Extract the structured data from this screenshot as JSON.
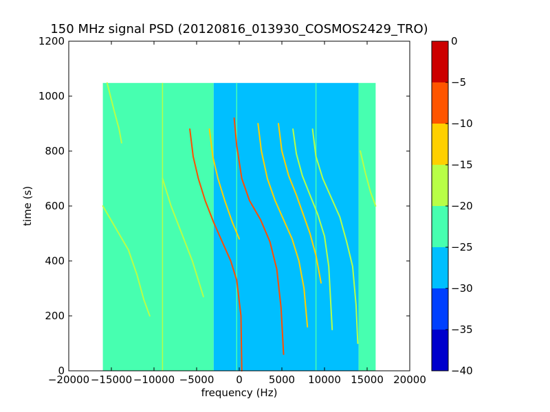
{
  "chart_data": {
    "type": "heatmap",
    "title": "150 MHz signal PSD (20120816_013930_COSMOS2429_TRO)",
    "xlabel": "frequency (Hz)",
    "ylabel": "time (s)",
    "xlim": [
      -20000,
      20000
    ],
    "ylim": [
      0,
      1200
    ],
    "xticks": [
      -20000,
      -15000,
      -10000,
      -5000,
      0,
      5000,
      10000,
      15000,
      20000
    ],
    "xtick_labels": [
      "−20000",
      "−15000",
      "−10000",
      "−5000",
      "0",
      "5000",
      "10000",
      "15000",
      "20000"
    ],
    "yticks": [
      0,
      200,
      400,
      600,
      800,
      1000,
      1200
    ],
    "ytick_labels": [
      "0",
      "200",
      "400",
      "600",
      "800",
      "1000",
      "1200"
    ],
    "grid": false,
    "data_extent": {
      "freq_min": -16000,
      "freq_max": 16000,
      "time_min": 0,
      "time_max": 1048
    },
    "regions": [
      {
        "freq_range": [
          -16000,
          -3000
        ],
        "level": "-25 to -20",
        "color": "#47ffb0"
      },
      {
        "freq_range": [
          -3000,
          14000
        ],
        "level": "-30 to -25",
        "color": "#00bfff"
      },
      {
        "freq_range": [
          14000,
          16000
        ],
        "level": "-25 to -20",
        "color": "#47ffb0"
      }
    ],
    "vertical_lines": [
      {
        "freq": -9000,
        "color": "#b8ff47"
      },
      {
        "freq": -300,
        "color": "#47ffb0"
      },
      {
        "freq": 9000,
        "color": "#47ffb0"
      }
    ],
    "signal_traces": [
      {
        "points": [
          [
            -15500,
            1048
          ],
          [
            -14700,
            950
          ],
          [
            -14100,
            880
          ],
          [
            -13800,
            830
          ]
        ],
        "color": "#b8ff47"
      },
      {
        "points": [
          [
            -16000,
            600
          ],
          [
            -14500,
            520
          ],
          [
            -13000,
            440
          ],
          [
            -12000,
            350
          ],
          [
            -11200,
            260
          ],
          [
            -10500,
            200
          ]
        ],
        "color": "#b8ff47"
      },
      {
        "points": [
          [
            -9000,
            700
          ],
          [
            -8000,
            600
          ],
          [
            -6500,
            480
          ],
          [
            -5500,
            400
          ],
          [
            -4800,
            330
          ],
          [
            -4200,
            270
          ]
        ],
        "color": "#b8ff47"
      },
      {
        "points": [
          [
            -5800,
            880
          ],
          [
            -5400,
            780
          ],
          [
            -4800,
            700
          ],
          [
            -4000,
            620
          ],
          [
            -3000,
            540
          ],
          [
            -2000,
            470
          ],
          [
            -1000,
            400
          ],
          [
            -300,
            330
          ],
          [
            200,
            200
          ],
          [
            300,
            0
          ]
        ],
        "color": "#ff4d00"
      },
      {
        "points": [
          [
            -3500,
            880
          ],
          [
            -3100,
            780
          ],
          [
            -2500,
            700
          ],
          [
            -1700,
            620
          ],
          [
            -800,
            540
          ],
          [
            0,
            480
          ]
        ],
        "color": "#ffd000"
      },
      {
        "points": [
          [
            -600,
            920
          ],
          [
            -300,
            820
          ],
          [
            300,
            700
          ],
          [
            1200,
            620
          ],
          [
            2500,
            550
          ],
          [
            3600,
            470
          ],
          [
            4400,
            370
          ],
          [
            4900,
            230
          ],
          [
            5200,
            60
          ]
        ],
        "color": "#ff4d00"
      },
      {
        "points": [
          [
            2200,
            900
          ],
          [
            2600,
            800
          ],
          [
            3300,
            700
          ],
          [
            4200,
            620
          ],
          [
            5200,
            550
          ],
          [
            6200,
            480
          ],
          [
            7000,
            400
          ],
          [
            7600,
            300
          ],
          [
            8000,
            160
          ]
        ],
        "color": "#ffd000"
      },
      {
        "points": [
          [
            4600,
            900
          ],
          [
            5000,
            800
          ],
          [
            5800,
            710
          ],
          [
            6700,
            640
          ],
          [
            7500,
            570
          ],
          [
            8300,
            500
          ],
          [
            9000,
            420
          ],
          [
            9600,
            320
          ]
        ],
        "color": "#ffd000"
      },
      {
        "points": [
          [
            6300,
            880
          ],
          [
            6700,
            790
          ],
          [
            7400,
            710
          ],
          [
            8300,
            640
          ],
          [
            9200,
            570
          ],
          [
            10000,
            490
          ],
          [
            10500,
            380
          ],
          [
            10900,
            150
          ]
        ],
        "color": "#b8ff47"
      },
      {
        "points": [
          [
            8600,
            880
          ],
          [
            9000,
            780
          ],
          [
            9800,
            700
          ],
          [
            10800,
            630
          ],
          [
            11800,
            560
          ],
          [
            12600,
            470
          ],
          [
            13300,
            380
          ],
          [
            13700,
            240
          ],
          [
            13900,
            100
          ]
        ],
        "color": "#b8ff47"
      },
      {
        "points": [
          [
            14200,
            800
          ],
          [
            14800,
            720
          ],
          [
            15400,
            650
          ],
          [
            16000,
            600
          ]
        ],
        "color": "#b8ff47"
      }
    ],
    "colorbar": {
      "range": [
        -40,
        0
      ],
      "ticks": [
        0,
        -5,
        -10,
        -15,
        -20,
        -25,
        -30,
        -35,
        -40
      ],
      "tick_labels": [
        "0",
        "−5",
        "−10",
        "−15",
        "−20",
        "−25",
        "−30",
        "−35",
        "−40"
      ],
      "colors": [
        "#0000cc",
        "#0040ff",
        "#00bfff",
        "#47ffb0",
        "#b8ff47",
        "#ffd000",
        "#ff5500",
        "#cc0000"
      ]
    }
  }
}
